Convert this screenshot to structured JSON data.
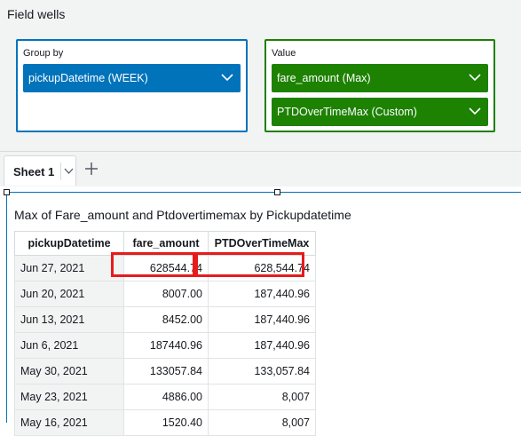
{
  "field_wells": {
    "title": "Field wells",
    "group_by": {
      "label": "Group by",
      "fields": [
        {
          "label": "pickupDatetime (WEEK)"
        }
      ]
    },
    "value": {
      "label": "Value",
      "fields": [
        {
          "label": "fare_amount (Max)"
        },
        {
          "label": "PTDOverTimeMax (Custom)"
        }
      ]
    },
    "colors": {
      "group_by": "#0073bb",
      "value": "#1d8102"
    }
  },
  "tabs": {
    "sheets": [
      {
        "label": "Sheet 1"
      }
    ],
    "add_icon": "plus-icon"
  },
  "visual": {
    "title": "Max of Fare_amount and Ptdovertimemax by Pickupdatetime",
    "columns": [
      "pickupDatetime",
      "fare_amount",
      "PTDOverTimeMax"
    ],
    "rows": [
      {
        "date": "Jun 27, 2021",
        "fare": "628544.74",
        "ptd": "628,544.74"
      },
      {
        "date": "Jun 20, 2021",
        "fare": "8007.00",
        "ptd": "187,440.96"
      },
      {
        "date": "Jun 13, 2021",
        "fare": "8452.00",
        "ptd": "187,440.96"
      },
      {
        "date": "Jun 6, 2021",
        "fare": "187440.96",
        "ptd": "187,440.96"
      },
      {
        "date": "May 30, 2021",
        "fare": "133057.84",
        "ptd": "133,057.84"
      },
      {
        "date": "May 23, 2021",
        "fare": "4886.00",
        "ptd": "8,007"
      },
      {
        "date": "May 16, 2021",
        "fare": "1520.40",
        "ptd": "8,007"
      }
    ],
    "highlight_color": "#e81a1a"
  }
}
